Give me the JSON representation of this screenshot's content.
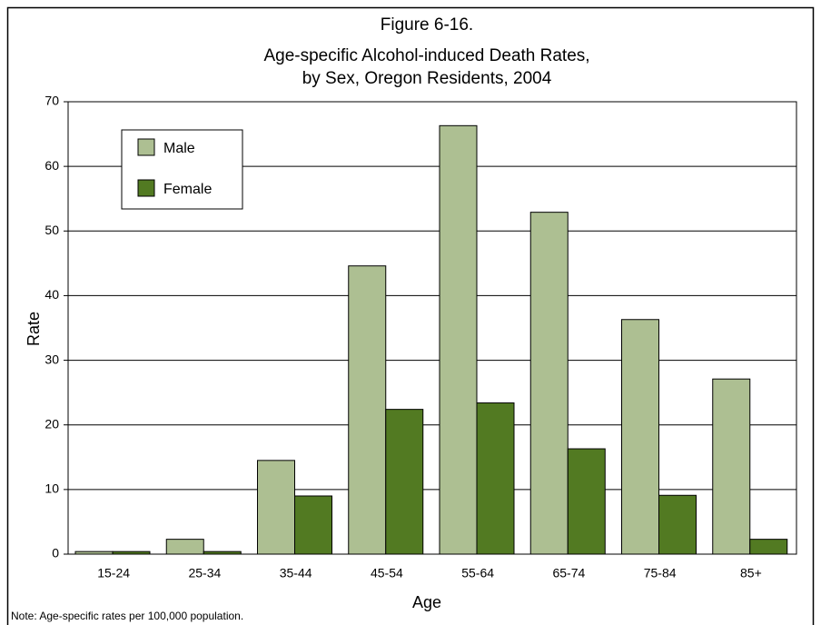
{
  "chart_data": {
    "type": "bar",
    "title": [
      "Figure 6-16.",
      "Age-specific Alcohol-induced Death Rates,",
      "by Sex, Oregon Residents, 2004"
    ],
    "x_label": "Age",
    "y_label": "Rate",
    "note": "Note:  Age-specific rates per 100,000 population.",
    "categories": [
      "15-24",
      "25-34",
      "35-44",
      "45-54",
      "55-64",
      "65-74",
      "75-84",
      "85+"
    ],
    "series": [
      {
        "name": "Male",
        "color": "#adbf92",
        "values": [
          0.4,
          2.3,
          14.5,
          44.6,
          66.3,
          52.9,
          36.3,
          27.1
        ]
      },
      {
        "name": "Female",
        "color": "#527a22",
        "values": [
          0.4,
          0.4,
          9.0,
          22.4,
          23.4,
          16.3,
          9.1,
          2.3
        ]
      }
    ],
    "ylim": [
      0,
      70
    ],
    "yticks": [
      0,
      10,
      20,
      30,
      40,
      50,
      60,
      70
    ],
    "grid": true,
    "legend": "upper left"
  }
}
